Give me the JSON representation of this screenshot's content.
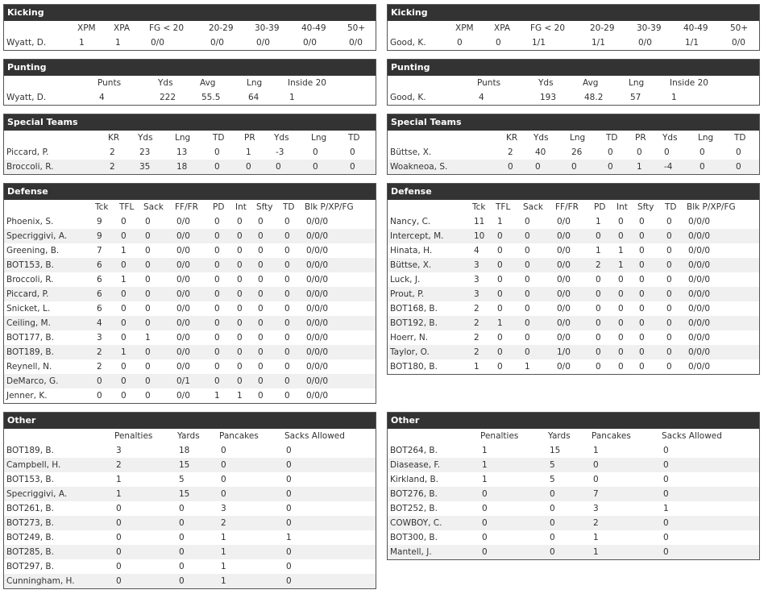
{
  "teams": [
    {
      "sections": [
        {
          "title": "Kicking",
          "headers": [
            "XPM",
            "XPA",
            "FG < 20",
            "20-29",
            "30-39",
            "40-49",
            "50+"
          ],
          "rows": [
            [
              "Wyatt, D.",
              "1",
              "1",
              "0/0",
              "0/0",
              "0/0",
              "0/0",
              "0/0"
            ]
          ]
        },
        {
          "title": "Punting",
          "headers": [
            "Punts",
            "Yds",
            "Avg",
            "Lng",
            "Inside 20"
          ],
          "rows": [
            [
              "Wyatt, D.",
              "4",
              "222",
              "55.5",
              "64",
              "1"
            ]
          ]
        },
        {
          "title": "Special Teams",
          "headers": [
            "KR",
            "Yds",
            "Lng",
            "TD",
            "PR",
            "Yds",
            "Lng",
            "TD"
          ],
          "rows": [
            [
              "Piccard, P.",
              "2",
              "23",
              "13",
              "0",
              "1",
              "-3",
              "0",
              "0"
            ],
            [
              "Broccoli, R.",
              "2",
              "35",
              "18",
              "0",
              "0",
              "0",
              "0",
              "0"
            ]
          ]
        },
        {
          "title": "Defense",
          "headers": [
            "Tck",
            "TFL",
            "Sack",
            "FF/FR",
            "PD",
            "Int",
            "Sfty",
            "TD",
            "Blk P/XP/FG"
          ],
          "rows": [
            [
              "Phoenix, S.",
              "9",
              "0",
              "0",
              "0/0",
              "0",
              "0",
              "0",
              "0",
              "0/0/0"
            ],
            [
              "Specriggivi, A.",
              "9",
              "0",
              "0",
              "0/0",
              "0",
              "0",
              "0",
              "0",
              "0/0/0"
            ],
            [
              "Greening, B.",
              "7",
              "1",
              "0",
              "0/0",
              "0",
              "0",
              "0",
              "0",
              "0/0/0"
            ],
            [
              "BOT153, B.",
              "6",
              "0",
              "0",
              "0/0",
              "0",
              "0",
              "0",
              "0",
              "0/0/0"
            ],
            [
              "Broccoli, R.",
              "6",
              "1",
              "0",
              "0/0",
              "0",
              "0",
              "0",
              "0",
              "0/0/0"
            ],
            [
              "Piccard, P.",
              "6",
              "0",
              "0",
              "0/0",
              "0",
              "0",
              "0",
              "0",
              "0/0/0"
            ],
            [
              "Snicket, L.",
              "6",
              "0",
              "0",
              "0/0",
              "0",
              "0",
              "0",
              "0",
              "0/0/0"
            ],
            [
              "Ceiling, M.",
              "4",
              "0",
              "0",
              "0/0",
              "0",
              "0",
              "0",
              "0",
              "0/0/0"
            ],
            [
              "BOT177, B.",
              "3",
              "0",
              "1",
              "0/0",
              "0",
              "0",
              "0",
              "0",
              "0/0/0"
            ],
            [
              "BOT189, B.",
              "2",
              "1",
              "0",
              "0/0",
              "0",
              "0",
              "0",
              "0",
              "0/0/0"
            ],
            [
              "Reynell, N.",
              "2",
              "0",
              "0",
              "0/0",
              "0",
              "0",
              "0",
              "0",
              "0/0/0"
            ],
            [
              "DeMarco, G.",
              "0",
              "0",
              "0",
              "0/1",
              "0",
              "0",
              "0",
              "0",
              "0/0/0"
            ],
            [
              "Jenner, K.",
              "0",
              "0",
              "0",
              "0/0",
              "1",
              "1",
              "0",
              "0",
              "0/0/0"
            ]
          ]
        },
        {
          "title": "Other",
          "headers": [
            "Penalties",
            "Yards",
            "Pancakes",
            "Sacks Allowed"
          ],
          "rows": [
            [
              "BOT189, B.",
              "3",
              "18",
              "0",
              "0"
            ],
            [
              "Campbell, H.",
              "2",
              "15",
              "0",
              "0"
            ],
            [
              "BOT153, B.",
              "1",
              "5",
              "0",
              "0"
            ],
            [
              "Specriggivi, A.",
              "1",
              "15",
              "0",
              "0"
            ],
            [
              "BOT261, B.",
              "0",
              "0",
              "3",
              "0"
            ],
            [
              "BOT273, B.",
              "0",
              "0",
              "2",
              "0"
            ],
            [
              "BOT249, B.",
              "0",
              "0",
              "1",
              "1"
            ],
            [
              "BOT285, B.",
              "0",
              "0",
              "1",
              "0"
            ],
            [
              "BOT297, B.",
              "0",
              "0",
              "1",
              "0"
            ],
            [
              "Cunningham, H.",
              "0",
              "0",
              "1",
              "0"
            ]
          ]
        }
      ]
    },
    {
      "sections": [
        {
          "title": "Kicking",
          "headers": [
            "XPM",
            "XPA",
            "FG < 20",
            "20-29",
            "30-39",
            "40-49",
            "50+"
          ],
          "rows": [
            [
              "Good, K.",
              "0",
              "0",
              "1/1",
              "1/1",
              "0/0",
              "1/1",
              "0/0"
            ]
          ]
        },
        {
          "title": "Punting",
          "headers": [
            "Punts",
            "Yds",
            "Avg",
            "Lng",
            "Inside 20"
          ],
          "rows": [
            [
              "Good, K.",
              "4",
              "193",
              "48.2",
              "57",
              "1"
            ]
          ]
        },
        {
          "title": "Special Teams",
          "headers": [
            "KR",
            "Yds",
            "Lng",
            "TD",
            "PR",
            "Yds",
            "Lng",
            "TD"
          ],
          "rows": [
            [
              "Büttse, X.",
              "2",
              "40",
              "26",
              "0",
              "0",
              "0",
              "0",
              "0"
            ],
            [
              "Woakneoa, S.",
              "0",
              "0",
              "0",
              "0",
              "1",
              "-4",
              "0",
              "0"
            ]
          ]
        },
        {
          "title": "Defense",
          "headers": [
            "Tck",
            "TFL",
            "Sack",
            "FF/FR",
            "PD",
            "Int",
            "Sfty",
            "TD",
            "Blk P/XP/FG"
          ],
          "rows": [
            [
              "Nancy, C.",
              "11",
              "1",
              "0",
              "0/0",
              "1",
              "0",
              "0",
              "0",
              "0/0/0"
            ],
            [
              "Intercept, M.",
              "10",
              "0",
              "0",
              "0/0",
              "0",
              "0",
              "0",
              "0",
              "0/0/0"
            ],
            [
              "Hinata, H.",
              "4",
              "0",
              "0",
              "0/0",
              "1",
              "1",
              "0",
              "0",
              "0/0/0"
            ],
            [
              "Büttse, X.",
              "3",
              "0",
              "0",
              "0/0",
              "2",
              "1",
              "0",
              "0",
              "0/0/0"
            ],
            [
              "Luck, J.",
              "3",
              "0",
              "0",
              "0/0",
              "0",
              "0",
              "0",
              "0",
              "0/0/0"
            ],
            [
              "Prout, P.",
              "3",
              "0",
              "0",
              "0/0",
              "0",
              "0",
              "0",
              "0",
              "0/0/0"
            ],
            [
              "BOT168, B.",
              "2",
              "0",
              "0",
              "0/0",
              "0",
              "0",
              "0",
              "0",
              "0/0/0"
            ],
            [
              "BOT192, B.",
              "2",
              "1",
              "0",
              "0/0",
              "0",
              "0",
              "0",
              "0",
              "0/0/0"
            ],
            [
              "Hoerr, N.",
              "2",
              "0",
              "0",
              "0/0",
              "0",
              "0",
              "0",
              "0",
              "0/0/0"
            ],
            [
              "Taylor, O.",
              "2",
              "0",
              "0",
              "1/0",
              "0",
              "0",
              "0",
              "0",
              "0/0/0"
            ],
            [
              "BOT180, B.",
              "1",
              "0",
              "1",
              "0/0",
              "0",
              "0",
              "0",
              "0",
              "0/0/0"
            ]
          ]
        },
        {
          "title": "Other",
          "headers": [
            "Penalties",
            "Yards",
            "Pancakes",
            "Sacks Allowed"
          ],
          "rows": [
            [
              "BOT264, B.",
              "1",
              "15",
              "1",
              "0"
            ],
            [
              "Diasease, F.",
              "1",
              "5",
              "0",
              "0"
            ],
            [
              "Kirkland, B.",
              "1",
              "5",
              "0",
              "0"
            ],
            [
              "BOT276, B.",
              "0",
              "0",
              "7",
              "0"
            ],
            [
              "BOT252, B.",
              "0",
              "0",
              "3",
              "1"
            ],
            [
              "COWBOY, C.",
              "0",
              "0",
              "2",
              "0"
            ],
            [
              "BOT300, B.",
              "0",
              "0",
              "1",
              "0"
            ],
            [
              "Mantell, J.",
              "0",
              "0",
              "1",
              "0"
            ]
          ]
        }
      ]
    }
  ]
}
